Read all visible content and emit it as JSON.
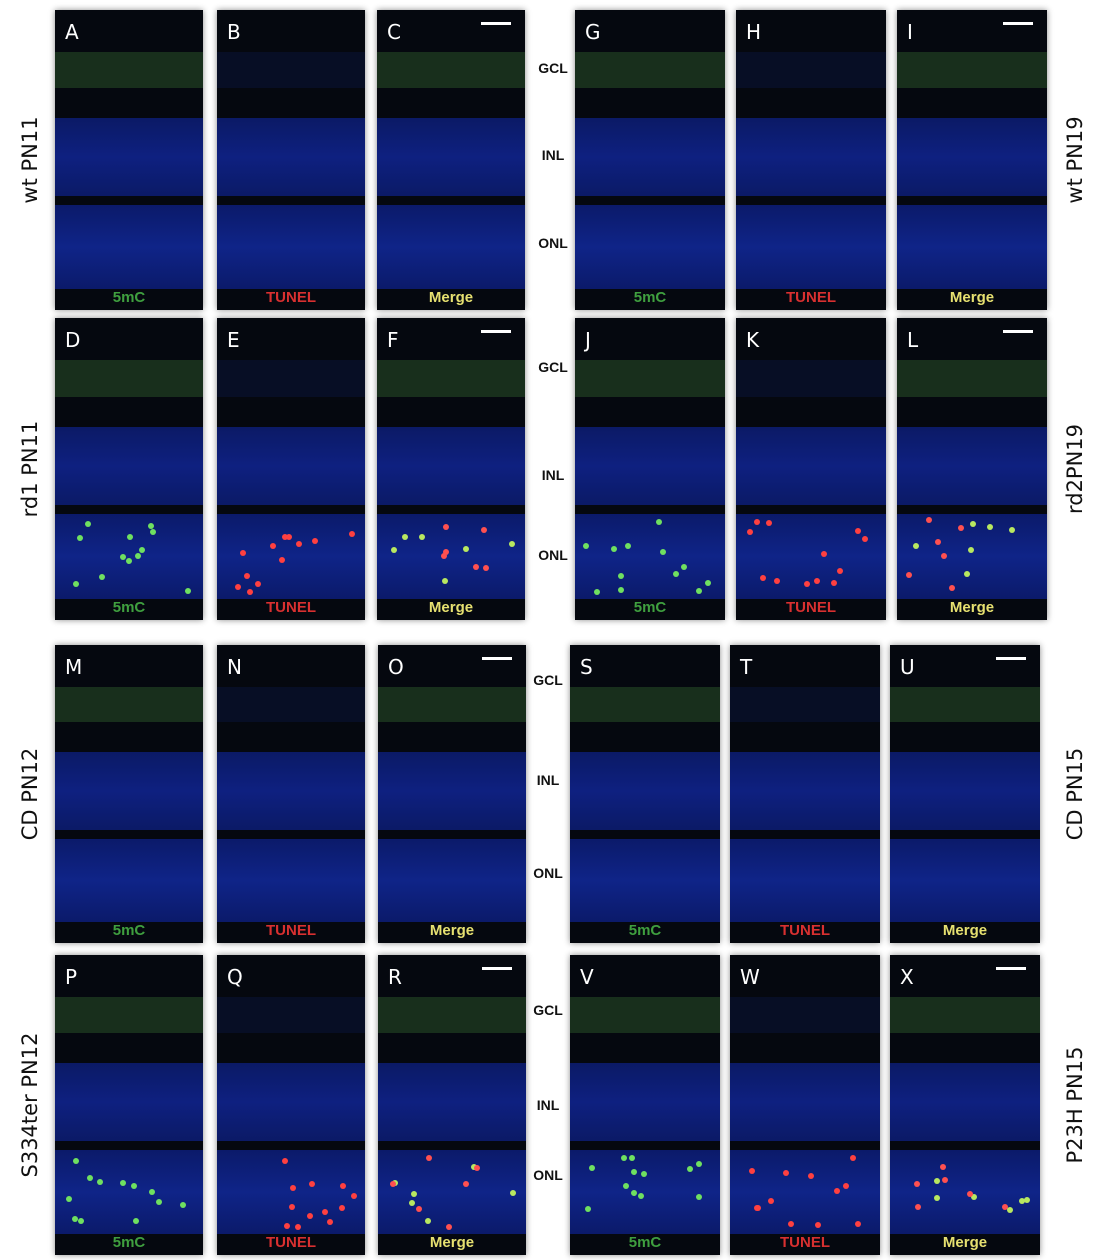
{
  "figure": {
    "panel_rows": [
      {
        "label": "wt PN11",
        "panels": [
          {
            "letter": "A",
            "channel": "5mC"
          },
          {
            "letter": "B",
            "channel": "TUNEL"
          },
          {
            "letter": "C",
            "channel": "Merge"
          }
        ]
      },
      {
        "label": "wt PN19",
        "panels": [
          {
            "letter": "G",
            "channel": "5mC"
          },
          {
            "letter": "H",
            "channel": "TUNEL"
          },
          {
            "letter": "I",
            "channel": "Merge"
          }
        ]
      },
      {
        "label": "rd1 PN11",
        "panels": [
          {
            "letter": "D",
            "channel": "5mC"
          },
          {
            "letter": "E",
            "channel": "TUNEL"
          },
          {
            "letter": "F",
            "channel": "Merge"
          }
        ]
      },
      {
        "label": "rd2PN19",
        "panels": [
          {
            "letter": "J",
            "channel": "5mC"
          },
          {
            "letter": "K",
            "channel": "TUNEL"
          },
          {
            "letter": "L",
            "channel": "Merge"
          }
        ]
      },
      {
        "label": "CD PN12",
        "panels": [
          {
            "letter": "M",
            "channel": "5mC"
          },
          {
            "letter": "N",
            "channel": "TUNEL"
          },
          {
            "letter": "O",
            "channel": "Merge"
          }
        ]
      },
      {
        "label": "CD PN15",
        "panels": [
          {
            "letter": "S",
            "channel": "5mC"
          },
          {
            "letter": "T",
            "channel": "TUNEL"
          },
          {
            "letter": "U",
            "channel": "Merge"
          }
        ]
      },
      {
        "label": "S334ter PN12",
        "panels": [
          {
            "letter": "P",
            "channel": "5mC"
          },
          {
            "letter": "Q",
            "channel": "TUNEL"
          },
          {
            "letter": "R",
            "channel": "Merge"
          }
        ]
      },
      {
        "label": "P23H PN15",
        "panels": [
          {
            "letter": "V",
            "channel": "5mC"
          },
          {
            "letter": "W",
            "channel": "TUNEL"
          },
          {
            "letter": "X",
            "channel": "Merge"
          }
        ]
      }
    ],
    "layer_sets": [
      [
        "GCL",
        "INL",
        "ONL"
      ],
      [
        "GCL",
        "INL",
        "ONL"
      ],
      [
        "GCL",
        "INL",
        "ONL"
      ],
      [
        "GCL",
        "INL",
        "ONL"
      ]
    ]
  }
}
